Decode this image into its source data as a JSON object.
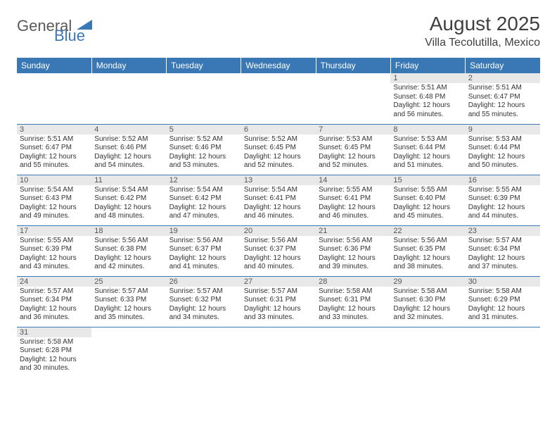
{
  "logo": {
    "text1": "General",
    "text2": "Blue",
    "triangle_color": "#3a78b5",
    "text1_color": "#5a5a5a",
    "text2_color": "#3a78b5"
  },
  "header": {
    "month": "August 2025",
    "location": "Villa Tecolutilla, Mexico"
  },
  "style": {
    "header_bg": "#3a78b5",
    "header_fg": "#ffffff",
    "daynum_bg": "#e8e8e8",
    "border_color": "#3a78b5",
    "body_font_size": 10,
    "header_font_size": 12,
    "month_font_size": 28,
    "location_font_size": 16
  },
  "weekdays": [
    "Sunday",
    "Monday",
    "Tuesday",
    "Wednesday",
    "Thursday",
    "Friday",
    "Saturday"
  ],
  "weeks": [
    [
      {
        "n": "",
        "sr": "",
        "ss": "",
        "dl": ""
      },
      {
        "n": "",
        "sr": "",
        "ss": "",
        "dl": ""
      },
      {
        "n": "",
        "sr": "",
        "ss": "",
        "dl": ""
      },
      {
        "n": "",
        "sr": "",
        "ss": "",
        "dl": ""
      },
      {
        "n": "",
        "sr": "",
        "ss": "",
        "dl": ""
      },
      {
        "n": "1",
        "sr": "Sunrise: 5:51 AM",
        "ss": "Sunset: 6:48 PM",
        "dl": "Daylight: 12 hours and 56 minutes."
      },
      {
        "n": "2",
        "sr": "Sunrise: 5:51 AM",
        "ss": "Sunset: 6:47 PM",
        "dl": "Daylight: 12 hours and 55 minutes."
      }
    ],
    [
      {
        "n": "3",
        "sr": "Sunrise: 5:51 AM",
        "ss": "Sunset: 6:47 PM",
        "dl": "Daylight: 12 hours and 55 minutes."
      },
      {
        "n": "4",
        "sr": "Sunrise: 5:52 AM",
        "ss": "Sunset: 6:46 PM",
        "dl": "Daylight: 12 hours and 54 minutes."
      },
      {
        "n": "5",
        "sr": "Sunrise: 5:52 AM",
        "ss": "Sunset: 6:46 PM",
        "dl": "Daylight: 12 hours and 53 minutes."
      },
      {
        "n": "6",
        "sr": "Sunrise: 5:52 AM",
        "ss": "Sunset: 6:45 PM",
        "dl": "Daylight: 12 hours and 52 minutes."
      },
      {
        "n": "7",
        "sr": "Sunrise: 5:53 AM",
        "ss": "Sunset: 6:45 PM",
        "dl": "Daylight: 12 hours and 52 minutes."
      },
      {
        "n": "8",
        "sr": "Sunrise: 5:53 AM",
        "ss": "Sunset: 6:44 PM",
        "dl": "Daylight: 12 hours and 51 minutes."
      },
      {
        "n": "9",
        "sr": "Sunrise: 5:53 AM",
        "ss": "Sunset: 6:44 PM",
        "dl": "Daylight: 12 hours and 50 minutes."
      }
    ],
    [
      {
        "n": "10",
        "sr": "Sunrise: 5:54 AM",
        "ss": "Sunset: 6:43 PM",
        "dl": "Daylight: 12 hours and 49 minutes."
      },
      {
        "n": "11",
        "sr": "Sunrise: 5:54 AM",
        "ss": "Sunset: 6:42 PM",
        "dl": "Daylight: 12 hours and 48 minutes."
      },
      {
        "n": "12",
        "sr": "Sunrise: 5:54 AM",
        "ss": "Sunset: 6:42 PM",
        "dl": "Daylight: 12 hours and 47 minutes."
      },
      {
        "n": "13",
        "sr": "Sunrise: 5:54 AM",
        "ss": "Sunset: 6:41 PM",
        "dl": "Daylight: 12 hours and 46 minutes."
      },
      {
        "n": "14",
        "sr": "Sunrise: 5:55 AM",
        "ss": "Sunset: 6:41 PM",
        "dl": "Daylight: 12 hours and 46 minutes."
      },
      {
        "n": "15",
        "sr": "Sunrise: 5:55 AM",
        "ss": "Sunset: 6:40 PM",
        "dl": "Daylight: 12 hours and 45 minutes."
      },
      {
        "n": "16",
        "sr": "Sunrise: 5:55 AM",
        "ss": "Sunset: 6:39 PM",
        "dl": "Daylight: 12 hours and 44 minutes."
      }
    ],
    [
      {
        "n": "17",
        "sr": "Sunrise: 5:55 AM",
        "ss": "Sunset: 6:39 PM",
        "dl": "Daylight: 12 hours and 43 minutes."
      },
      {
        "n": "18",
        "sr": "Sunrise: 5:56 AM",
        "ss": "Sunset: 6:38 PM",
        "dl": "Daylight: 12 hours and 42 minutes."
      },
      {
        "n": "19",
        "sr": "Sunrise: 5:56 AM",
        "ss": "Sunset: 6:37 PM",
        "dl": "Daylight: 12 hours and 41 minutes."
      },
      {
        "n": "20",
        "sr": "Sunrise: 5:56 AM",
        "ss": "Sunset: 6:37 PM",
        "dl": "Daylight: 12 hours and 40 minutes."
      },
      {
        "n": "21",
        "sr": "Sunrise: 5:56 AM",
        "ss": "Sunset: 6:36 PM",
        "dl": "Daylight: 12 hours and 39 minutes."
      },
      {
        "n": "22",
        "sr": "Sunrise: 5:56 AM",
        "ss": "Sunset: 6:35 PM",
        "dl": "Daylight: 12 hours and 38 minutes."
      },
      {
        "n": "23",
        "sr": "Sunrise: 5:57 AM",
        "ss": "Sunset: 6:34 PM",
        "dl": "Daylight: 12 hours and 37 minutes."
      }
    ],
    [
      {
        "n": "24",
        "sr": "Sunrise: 5:57 AM",
        "ss": "Sunset: 6:34 PM",
        "dl": "Daylight: 12 hours and 36 minutes."
      },
      {
        "n": "25",
        "sr": "Sunrise: 5:57 AM",
        "ss": "Sunset: 6:33 PM",
        "dl": "Daylight: 12 hours and 35 minutes."
      },
      {
        "n": "26",
        "sr": "Sunrise: 5:57 AM",
        "ss": "Sunset: 6:32 PM",
        "dl": "Daylight: 12 hours and 34 minutes."
      },
      {
        "n": "27",
        "sr": "Sunrise: 5:57 AM",
        "ss": "Sunset: 6:31 PM",
        "dl": "Daylight: 12 hours and 33 minutes."
      },
      {
        "n": "28",
        "sr": "Sunrise: 5:58 AM",
        "ss": "Sunset: 6:31 PM",
        "dl": "Daylight: 12 hours and 33 minutes."
      },
      {
        "n": "29",
        "sr": "Sunrise: 5:58 AM",
        "ss": "Sunset: 6:30 PM",
        "dl": "Daylight: 12 hours and 32 minutes."
      },
      {
        "n": "30",
        "sr": "Sunrise: 5:58 AM",
        "ss": "Sunset: 6:29 PM",
        "dl": "Daylight: 12 hours and 31 minutes."
      }
    ],
    [
      {
        "n": "31",
        "sr": "Sunrise: 5:58 AM",
        "ss": "Sunset: 6:28 PM",
        "dl": "Daylight: 12 hours and 30 minutes."
      },
      {
        "n": "",
        "sr": "",
        "ss": "",
        "dl": ""
      },
      {
        "n": "",
        "sr": "",
        "ss": "",
        "dl": ""
      },
      {
        "n": "",
        "sr": "",
        "ss": "",
        "dl": ""
      },
      {
        "n": "",
        "sr": "",
        "ss": "",
        "dl": ""
      },
      {
        "n": "",
        "sr": "",
        "ss": "",
        "dl": ""
      },
      {
        "n": "",
        "sr": "",
        "ss": "",
        "dl": ""
      }
    ]
  ]
}
